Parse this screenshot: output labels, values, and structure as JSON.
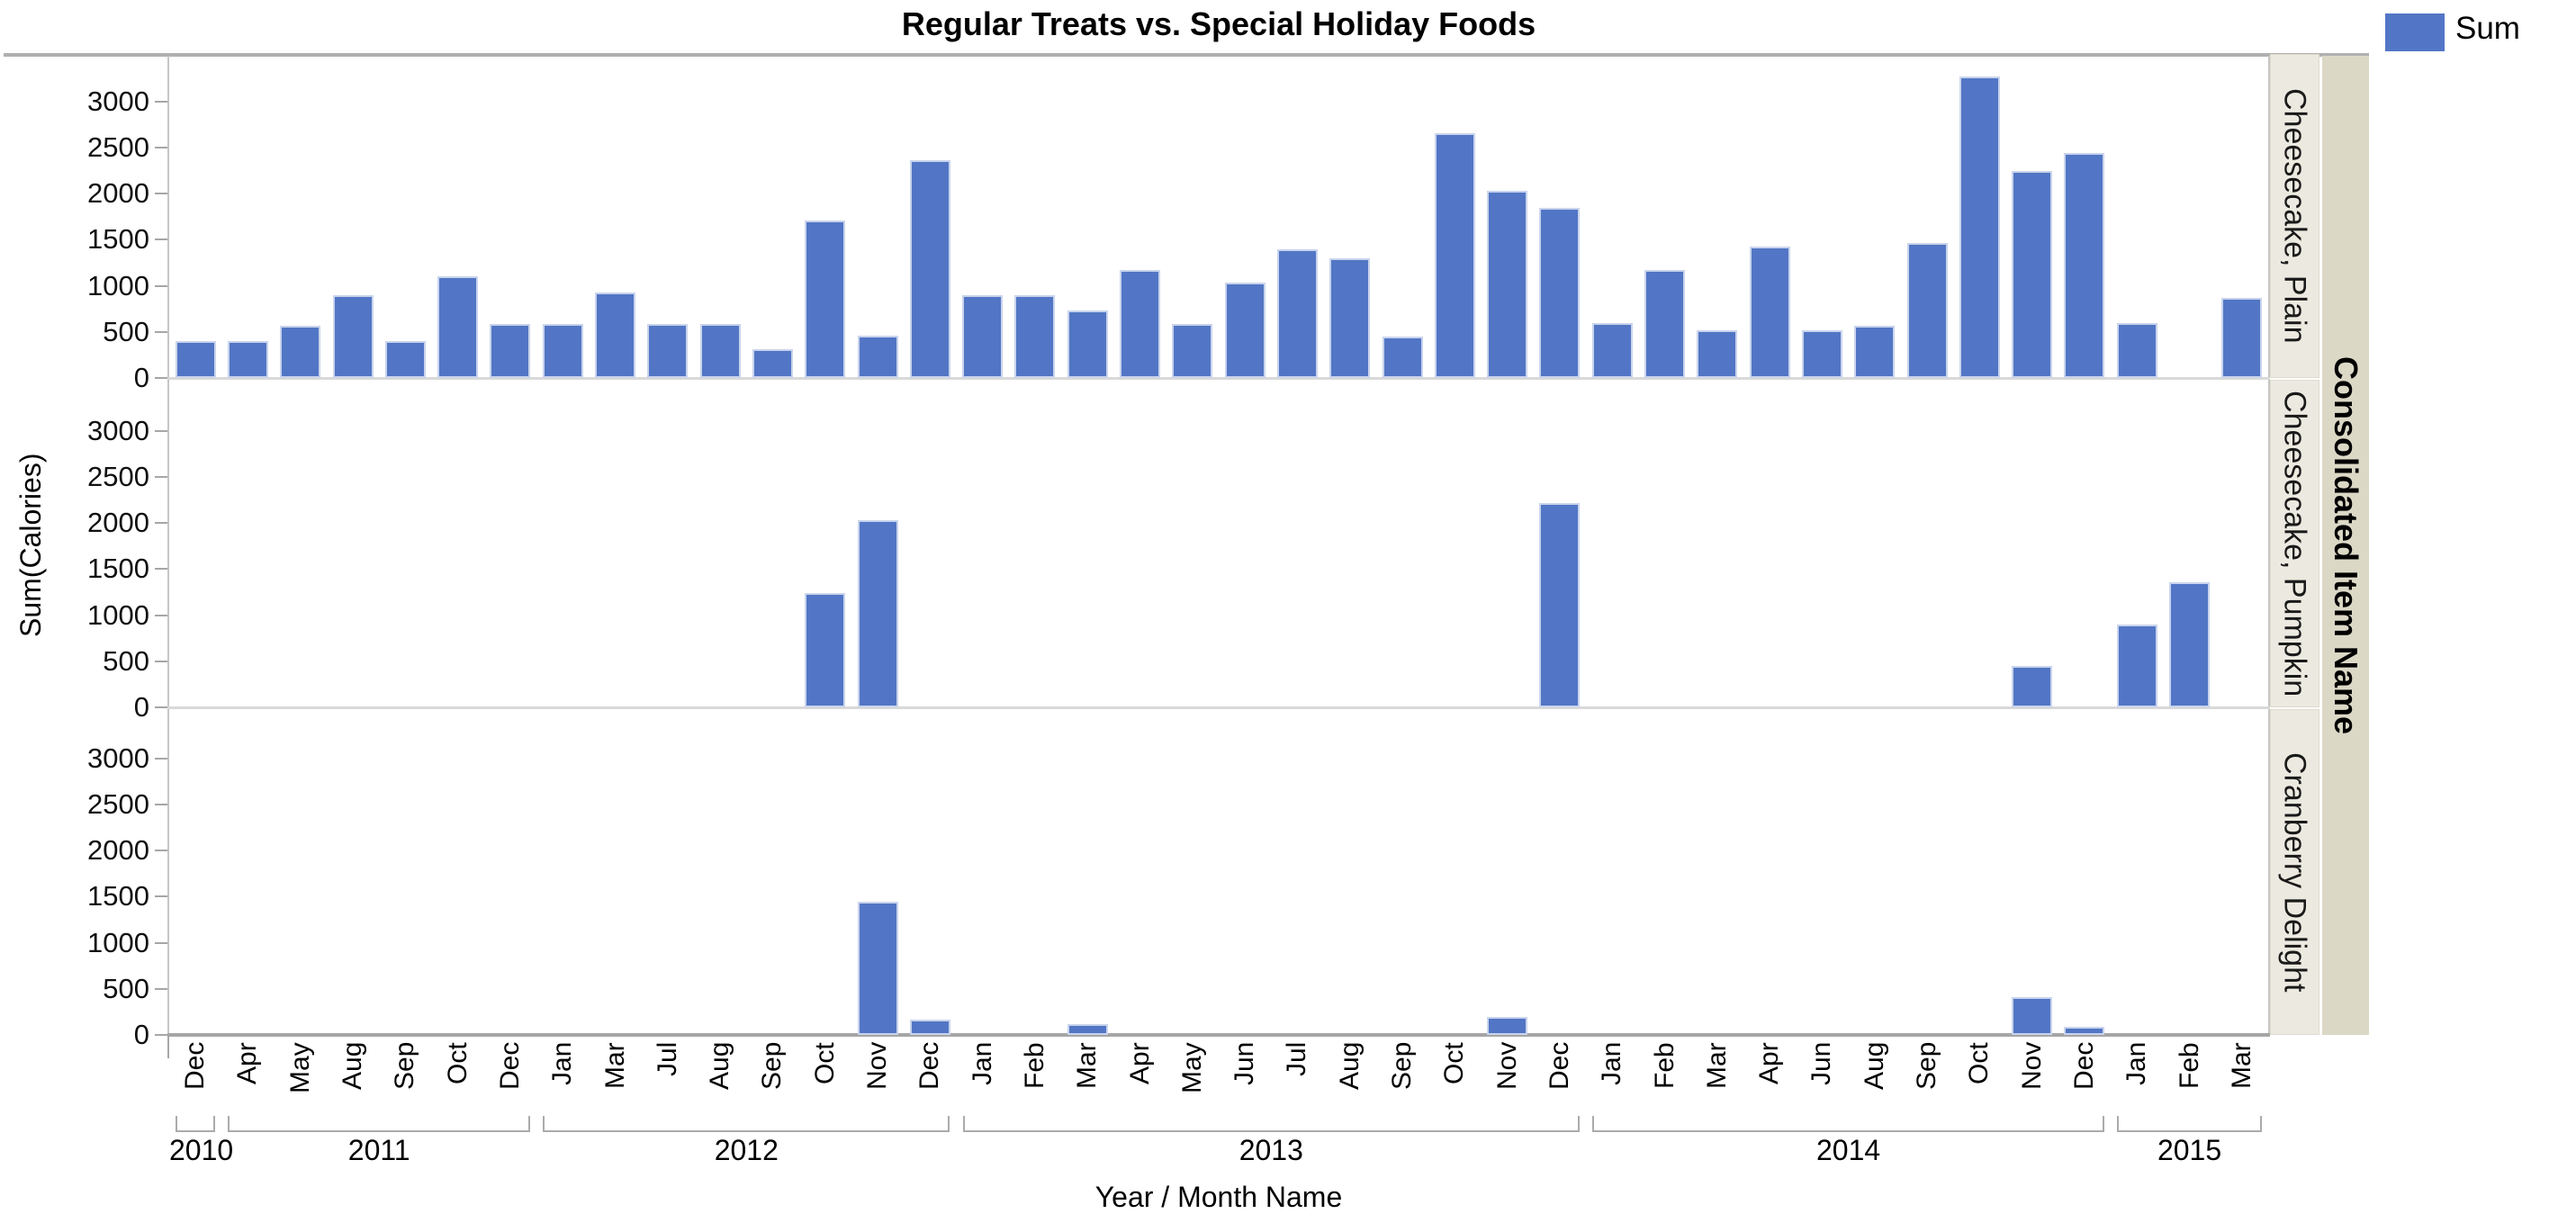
{
  "header": {
    "title": "Regular Treats vs. Special Holiday Foods"
  },
  "legend": {
    "label": "Sum"
  },
  "colors": {
    "bar": "#5276C5",
    "bar_edge": "#C9D4EC",
    "strip_inner_bg": "#ECEAE0",
    "strip_inner_border": "#DDDBCE",
    "strip_outer_bg": "#DBD8C6",
    "axis_strong": "#A6A6A6",
    "axis_light": "#D9D9D9",
    "border": "#C6C6C6",
    "bracket": "#ABABAB"
  },
  "chart_data": {
    "type": "bar",
    "title": "Regular Treats vs. Special Holiday Foods",
    "ylabel": "Sum(Calories)",
    "xlabel": "Year / Month Name",
    "legend_label": "Sum",
    "legend_position": "top-right",
    "grid": false,
    "ylim": [
      0,
      3250
    ],
    "yticks": [
      0,
      500,
      1000,
      1500,
      2000,
      2500,
      3000
    ],
    "facet_axis_title": "Consolidated Item Name",
    "groups": [
      {
        "year": "2010",
        "months": [
          "Dec"
        ]
      },
      {
        "year": "2011",
        "months": [
          "Apr",
          "May",
          "Aug",
          "Sep",
          "Oct",
          "Dec"
        ]
      },
      {
        "year": "2012",
        "months": [
          "Jan",
          "Mar",
          "Jul",
          "Aug",
          "Sep",
          "Oct",
          "Nov",
          "Dec"
        ]
      },
      {
        "year": "2013",
        "months": [
          "Jan",
          "Feb",
          "Mar",
          "Apr",
          "May",
          "Jun",
          "Jul",
          "Aug",
          "Sep",
          "Oct",
          "Nov",
          "Dec"
        ]
      },
      {
        "year": "2014",
        "months": [
          "Jan",
          "Feb",
          "Mar",
          "Apr",
          "Jun",
          "Aug",
          "Sep",
          "Oct",
          "Nov",
          "Dec"
        ]
      },
      {
        "year": "2015",
        "months": [
          "Jan",
          "Feb",
          "Mar"
        ]
      }
    ],
    "panels": [
      {
        "label": "Cheesecake, Plain",
        "values": [
          400,
          400,
          570,
          900,
          400,
          1100,
          590,
          590,
          930,
          590,
          590,
          310,
          1710,
          460,
          2360,
          900,
          900,
          730,
          1170,
          590,
          1040,
          1400,
          1300,
          450,
          2660,
          2030,
          1850,
          600,
          1170,
          520,
          1430,
          520,
          570,
          1470,
          3270,
          2250,
          2440,
          600,
          0,
          870
        ]
      },
      {
        "label": "Cheesecake, Pumpkin",
        "values": [
          0,
          0,
          0,
          0,
          0,
          0,
          0,
          0,
          0,
          0,
          0,
          0,
          1240,
          2030,
          0,
          0,
          0,
          0,
          0,
          0,
          0,
          0,
          0,
          0,
          0,
          0,
          2220,
          0,
          0,
          0,
          0,
          0,
          0,
          0,
          0,
          450,
          0,
          900,
          1360,
          0
        ]
      },
      {
        "label": "Cranberry Delight",
        "values": [
          0,
          0,
          0,
          0,
          0,
          0,
          0,
          0,
          0,
          0,
          0,
          0,
          0,
          1450,
          170,
          0,
          0,
          120,
          0,
          0,
          0,
          0,
          0,
          0,
          0,
          200,
          0,
          0,
          0,
          0,
          0,
          0,
          0,
          0,
          0,
          410,
          90,
          0,
          0,
          0
        ]
      }
    ]
  }
}
